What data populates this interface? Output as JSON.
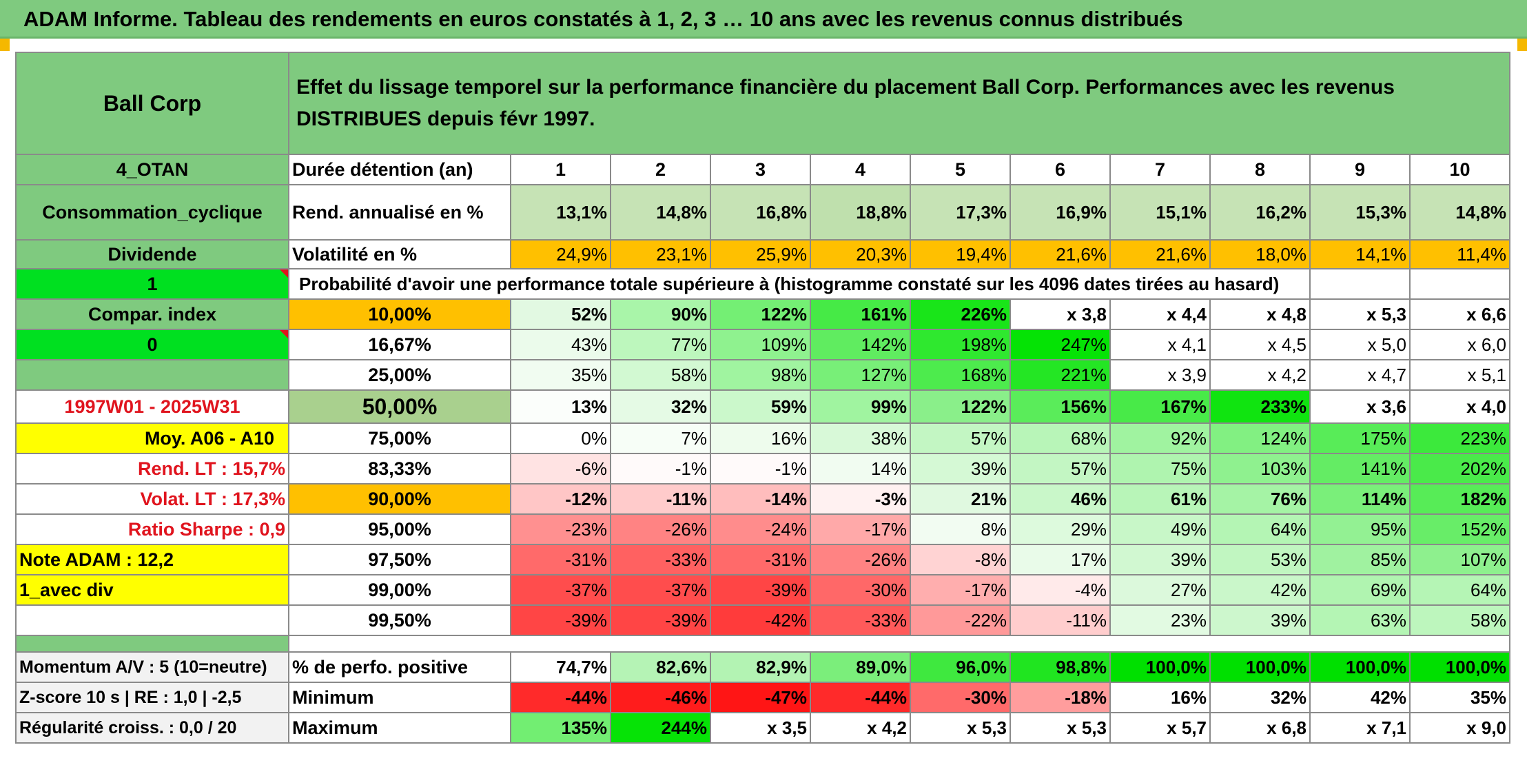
{
  "title": "ADAM Informe. Tableau des rendements en euros constatés à 1, 2, 3 … 10 ans avec les revenus connus distribués",
  "header": {
    "asset": "Ball Corp",
    "description": "Effet du lissage temporel sur la performance financière du placement Ball Corp. Performances avec les revenus DISTRIBUES depuis févr 1997."
  },
  "side": {
    "code": "4_OTAN",
    "sector": "Consommation_cyclique",
    "dividend": "Dividende",
    "flag1": "1",
    "compar_index": "Compar. index",
    "flag0": "0",
    "blank": "",
    "period": "1997W01 - 2025W31",
    "avg": "Moy. A06 - A10",
    "rend_lt": "Rend. LT :    15,7%",
    "volat_lt": "Volat. LT :    17,3%",
    "sharpe": "Ratio Sharpe :    0,9",
    "note": "Note ADAM : 12,2",
    "avec_div": "1_avec div",
    "momentum": "Momentum A/V : 5 (10=neutre)",
    "zscore": "Z-score 10 s | RE : 1,0 | -2,5",
    "regularite": "Régularité croiss. : 0,0 / 20"
  },
  "labels": {
    "duree": "Durée détention (an)",
    "rend": "Rend. annualisé en %",
    "volat": "Volatilité en %",
    "proba": "Probabilité d'avoir une performance totale supérieure à (histogramme constaté sur les 4096 dates tirées au hasard)",
    "pct_pos": "% de perfo. positive",
    "minimum": "Minimum",
    "maximum": "Maximum"
  },
  "colors": {
    "header_green": "#7fca7f",
    "bright_green": "#00e020",
    "yellow": "#ffff00",
    "orange": "#ffc000",
    "red_text": "#e0141e"
  },
  "chart_data": {
    "type": "table",
    "years": [
      "1",
      "2",
      "3",
      "4",
      "5",
      "6",
      "7",
      "8",
      "9",
      "10"
    ],
    "rend": [
      "13,1%",
      "14,8%",
      "16,8%",
      "18,8%",
      "17,3%",
      "16,9%",
      "15,1%",
      "16,2%",
      "15,3%",
      "14,8%"
    ],
    "volat": [
      "24,9%",
      "23,1%",
      "25,9%",
      "20,3%",
      "19,4%",
      "21,6%",
      "21,6%",
      "18,0%",
      "14,1%",
      "11,4%"
    ],
    "prob_rows": [
      {
        "threshold": "10,00%",
        "values": [
          "52%",
          "90%",
          "122%",
          "161%",
          "226%",
          "x 3,8",
          "x 4,4",
          "x 4,8",
          "x 5,3",
          "x 6,6"
        ]
      },
      {
        "threshold": "16,67%",
        "values": [
          "43%",
          "77%",
          "109%",
          "142%",
          "198%",
          "247%",
          "x 4,1",
          "x 4,5",
          "x 5,0",
          "x 6,0"
        ]
      },
      {
        "threshold": "25,00%",
        "values": [
          "35%",
          "58%",
          "98%",
          "127%",
          "168%",
          "221%",
          "x 3,9",
          "x 4,2",
          "x 4,7",
          "x 5,1"
        ]
      },
      {
        "threshold": "50,00%",
        "values": [
          "13%",
          "32%",
          "59%",
          "99%",
          "122%",
          "156%",
          "167%",
          "233%",
          "x 3,6",
          "x 4,0"
        ]
      },
      {
        "threshold": "75,00%",
        "values": [
          "0%",
          "7%",
          "16%",
          "38%",
          "57%",
          "68%",
          "92%",
          "124%",
          "175%",
          "223%"
        ]
      },
      {
        "threshold": "83,33%",
        "values": [
          "-6%",
          "-1%",
          "-1%",
          "14%",
          "39%",
          "57%",
          "75%",
          "103%",
          "141%",
          "202%"
        ]
      },
      {
        "threshold": "90,00%",
        "values": [
          "-12%",
          "-11%",
          "-14%",
          "-3%",
          "21%",
          "46%",
          "61%",
          "76%",
          "114%",
          "182%"
        ]
      },
      {
        "threshold": "95,00%",
        "values": [
          "-23%",
          "-26%",
          "-24%",
          "-17%",
          "8%",
          "29%",
          "49%",
          "64%",
          "95%",
          "152%"
        ]
      },
      {
        "threshold": "97,50%",
        "values": [
          "-31%",
          "-33%",
          "-31%",
          "-26%",
          "-8%",
          "17%",
          "39%",
          "53%",
          "85%",
          "107%"
        ]
      },
      {
        "threshold": "99,00%",
        "values": [
          "-37%",
          "-37%",
          "-39%",
          "-30%",
          "-17%",
          "-4%",
          "27%",
          "42%",
          "69%",
          "64%"
        ]
      },
      {
        "threshold": "99,50%",
        "values": [
          "-39%",
          "-39%",
          "-42%",
          "-33%",
          "-22%",
          "-11%",
          "23%",
          "39%",
          "63%",
          "58%"
        ]
      }
    ],
    "pct_pos": [
      "74,7%",
      "82,6%",
      "82,9%",
      "89,0%",
      "96,0%",
      "98,8%",
      "100,0%",
      "100,0%",
      "100,0%",
      "100,0%"
    ],
    "minimum": [
      "-44%",
      "-46%",
      "-47%",
      "-44%",
      "-30%",
      "-18%",
      "16%",
      "32%",
      "42%",
      "35%"
    ],
    "maximum": [
      "135%",
      "244%",
      "x 3,5",
      "x 4,2",
      "x 5,3",
      "x 5,3",
      "x 5,7",
      "x 6,8",
      "x 7,1",
      "x 9,0"
    ],
    "cell_colors": {
      "rend": [
        "#c6e3b5",
        "#c6e3b5",
        "#c6e3b5",
        "#bfe0ad",
        "#c6e3b5",
        "#c6e3b5",
        "#c6e3b5",
        "#c6e3b5",
        "#c6e3b5",
        "#c6e3b5"
      ],
      "volat": [
        "#ffc000",
        "#ffc000",
        "#ffc000",
        "#ffc000",
        "#ffc000",
        "#ffc000",
        "#ffc000",
        "#ffc000",
        "#ffc000",
        "#ffc000"
      ],
      "prob": [
        [
          "#e2f9e2",
          "#a9f5a9",
          "#74ef74",
          "#46ea46",
          "#19e519",
          "#ffffff",
          "#ffffff",
          "#ffffff",
          "#ffffff",
          "#ffffff"
        ],
        [
          "#ebfbeb",
          "#bdf7bd",
          "#8ff28f",
          "#60ec60",
          "#2fe82f",
          "#05e305",
          "#ffffff",
          "#ffffff",
          "#ffffff",
          "#ffffff"
        ],
        [
          "#f1fcf1",
          "#d2f9d2",
          "#a0f4a0",
          "#78ef78",
          "#4deb4d",
          "#24e624",
          "#ffffff",
          "#ffffff",
          "#ffffff",
          "#ffffff"
        ],
        [
          "#fbfefb",
          "#e5fae5",
          "#cbf8cb",
          "#a0f4a0",
          "#8aef8a",
          "#5aec5a",
          "#48ea48",
          "#10e410",
          "#ffffff",
          "#ffffff"
        ],
        [
          "#ffffff",
          "#f7fef7",
          "#eefced",
          "#d8f9d8",
          "#c3f6c3",
          "#b8f5b8",
          "#a0f3a0",
          "#82f082",
          "#58ec58",
          "#3ce93c"
        ],
        [
          "#ffe3e3",
          "#fffafa",
          "#fffafa",
          "#f1fcf1",
          "#d5f9d5",
          "#c3f6c3",
          "#aff4af",
          "#8ff18f",
          "#64ec64",
          "#4aea4a"
        ],
        [
          "#ffc6c6",
          "#ffcbcb",
          "#ffbdbd",
          "#fff1f1",
          "#e0f9e0",
          "#c9f7c9",
          "#b8f5b8",
          "#a5f3a5",
          "#7aef7a",
          "#57ec57"
        ],
        [
          "#ff9090",
          "#ff8383",
          "#ff8c8c",
          "#ffa9a9",
          "#f2fcf2",
          "#ddfadd",
          "#c8f7c8",
          "#b4f5b4",
          "#93f193",
          "#68ed68"
        ],
        [
          "#ff6a6a",
          "#ff6161",
          "#ff6a6a",
          "#ff8383",
          "#ffd3d3",
          "#e9fbe9",
          "#d1f8d1",
          "#c1f6c1",
          "#a0f2a0",
          "#8ef08e"
        ],
        [
          "#ff4d4d",
          "#ff4d4d",
          "#ff4545",
          "#ff6868",
          "#ffaeae",
          "#ffeaea",
          "#dcf9dc",
          "#caf7ca",
          "#b0f4b0",
          "#b5f5b5"
        ],
        [
          "#ff4545",
          "#ff4545",
          "#ff3b3b",
          "#ff5a5a",
          "#ff9999",
          "#ffcdcd",
          "#e2fae2",
          "#cdf7cd",
          "#b4f5b4",
          "#bdf6bd"
        ]
      ],
      "pct_pos": [
        "#ffffff",
        "#b5f3b5",
        "#b3f3b3",
        "#7bee7b",
        "#3fe83f",
        "#20e520",
        "#00e000",
        "#00e000",
        "#00e000",
        "#00e000"
      ],
      "minimum": [
        "#ff2a2a",
        "#ff1c1c",
        "#ff1515",
        "#ff2a2a",
        "#ff6a6a",
        "#ff9d9d",
        "#ffffff",
        "#ffffff",
        "#ffffff",
        "#ffffff"
      ],
      "maximum": [
        "#72ee72",
        "#06e306",
        "#ffffff",
        "#ffffff",
        "#ffffff",
        "#ffffff",
        "#ffffff",
        "#ffffff",
        "#ffffff",
        "#ffffff"
      ]
    }
  }
}
